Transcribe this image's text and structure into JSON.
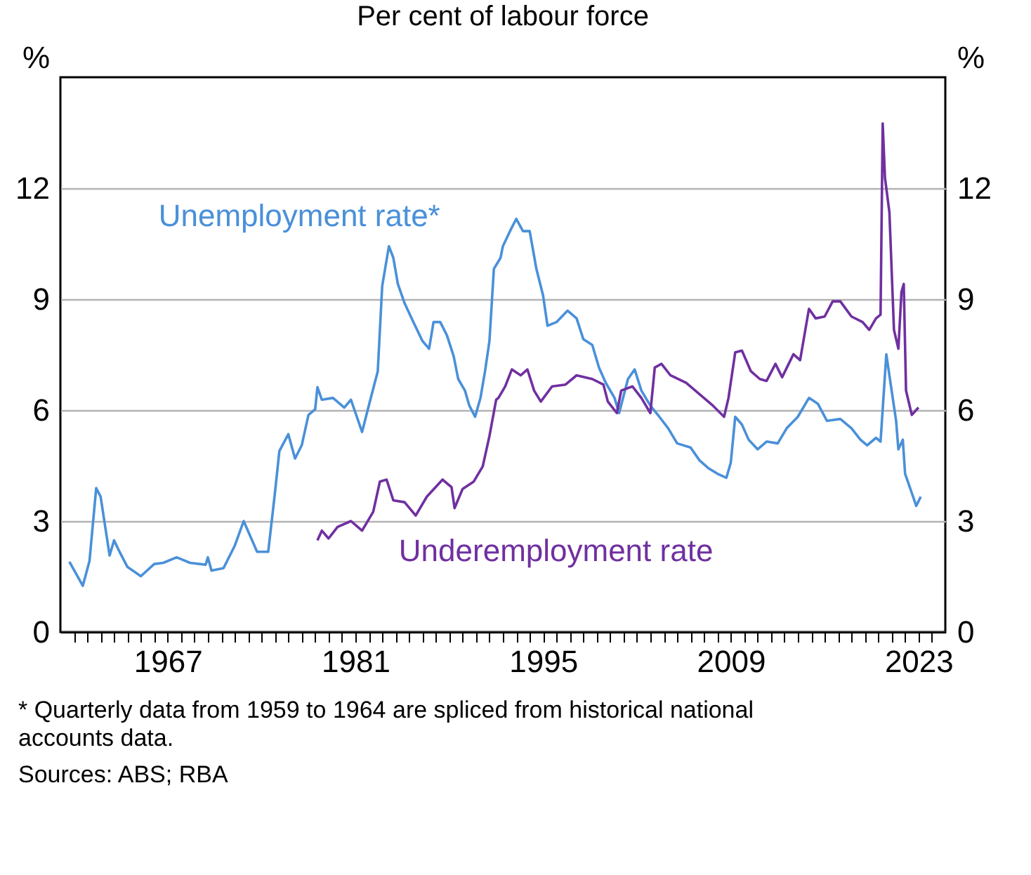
{
  "chart_data": {
    "type": "line",
    "title": "Per cent of labour force",
    "ylabel": "%",
    "y2label": "%",
    "xlim": [
      1959,
      2025
    ],
    "ylim": [
      0,
      15
    ],
    "y2lim": [
      0,
      15
    ],
    "yticks": [
      0,
      3,
      6,
      9,
      12
    ],
    "y2ticks": [
      0,
      3,
      6,
      9,
      12
    ],
    "xticks": [
      {
        "value": 1960,
        "label": null
      },
      {
        "value": 1961,
        "label": null
      },
      {
        "value": 1962,
        "label": null
      },
      {
        "value": 1963,
        "label": null
      },
      {
        "value": 1964,
        "label": null
      },
      {
        "value": 1965,
        "label": null
      },
      {
        "value": 1966,
        "label": null
      },
      {
        "value": 1967,
        "label": "1967"
      },
      {
        "value": 1968,
        "label": null
      },
      {
        "value": 1969,
        "label": null
      },
      {
        "value": 1970,
        "label": null
      },
      {
        "value": 1971,
        "label": null
      },
      {
        "value": 1972,
        "label": null
      },
      {
        "value": 1973,
        "label": null
      },
      {
        "value": 1974,
        "label": null
      },
      {
        "value": 1975,
        "label": null
      },
      {
        "value": 1976,
        "label": null
      },
      {
        "value": 1977,
        "label": null
      },
      {
        "value": 1978,
        "label": null
      },
      {
        "value": 1979,
        "label": null
      },
      {
        "value": 1980,
        "label": null
      },
      {
        "value": 1981,
        "label": "1981"
      },
      {
        "value": 1982,
        "label": null
      },
      {
        "value": 1983,
        "label": null
      },
      {
        "value": 1984,
        "label": null
      },
      {
        "value": 1985,
        "label": null
      },
      {
        "value": 1986,
        "label": null
      },
      {
        "value": 1987,
        "label": null
      },
      {
        "value": 1988,
        "label": null
      },
      {
        "value": 1989,
        "label": null
      },
      {
        "value": 1990,
        "label": null
      },
      {
        "value": 1991,
        "label": null
      },
      {
        "value": 1992,
        "label": null
      },
      {
        "value": 1993,
        "label": null
      },
      {
        "value": 1994,
        "label": null
      },
      {
        "value": 1995,
        "label": "1995"
      },
      {
        "value": 1996,
        "label": null
      },
      {
        "value": 1997,
        "label": null
      },
      {
        "value": 1998,
        "label": null
      },
      {
        "value": 1999,
        "label": null
      },
      {
        "value": 2000,
        "label": null
      },
      {
        "value": 2001,
        "label": null
      },
      {
        "value": 2002,
        "label": null
      },
      {
        "value": 2003,
        "label": null
      },
      {
        "value": 2004,
        "label": null
      },
      {
        "value": 2005,
        "label": null
      },
      {
        "value": 2006,
        "label": null
      },
      {
        "value": 2007,
        "label": null
      },
      {
        "value": 2008,
        "label": null
      },
      {
        "value": 2009,
        "label": "2009"
      },
      {
        "value": 2010,
        "label": null
      },
      {
        "value": 2011,
        "label": null
      },
      {
        "value": 2012,
        "label": null
      },
      {
        "value": 2013,
        "label": null
      },
      {
        "value": 2014,
        "label": null
      },
      {
        "value": 2015,
        "label": null
      },
      {
        "value": 2016,
        "label": null
      },
      {
        "value": 2017,
        "label": null
      },
      {
        "value": 2018,
        "label": null
      },
      {
        "value": 2019,
        "label": null
      },
      {
        "value": 2020,
        "label": null
      },
      {
        "value": 2021,
        "label": null
      },
      {
        "value": 2022,
        "label": null
      },
      {
        "value": 2023,
        "label": "2023"
      },
      {
        "value": 2024,
        "label": null
      }
    ],
    "grid": "y",
    "legend": false,
    "series": [
      {
        "name": "Unemployment rate*",
        "color": "#4a90d9",
        "x": [
          1959.67,
          1960.67,
          1961.17,
          1961.67,
          1962.0,
          1962.67,
          1963.0,
          1963.33,
          1964.0,
          1965.0,
          1966.0,
          1966.67,
          1967.67,
          1968.67,
          1969.83,
          1970.0,
          1970.27,
          1971.17,
          1972.0,
          1972.67,
          1973.67,
          1974.5,
          1975.0,
          1975.33,
          1976.0,
          1976.5,
          1977.0,
          1977.5,
          1978.0,
          1978.17,
          1978.5,
          1979.33,
          1980.17,
          1980.67,
          1981.5,
          1982.0,
          1982.67,
          1983.0,
          1983.5,
          1983.83,
          1984.17,
          1984.67,
          1985.33,
          1986.0,
          1986.5,
          1986.83,
          1987.33,
          1987.83,
          1988.33,
          1988.67,
          1989.17,
          1989.5,
          1989.93,
          1990.33,
          1990.67,
          1991.0,
          1991.33,
          1991.83,
          1992.0,
          1992.67,
          1993.0,
          1993.5,
          1994.0,
          1994.5,
          1995.0,
          1995.33,
          1996.0,
          1996.83,
          1997.5,
          1998.0,
          1998.67,
          1999.17,
          1999.67,
          2000.33,
          2000.67,
          2001.33,
          2001.83,
          2002.33,
          2003.0,
          2003.67,
          2004.33,
          2005.0,
          2006.0,
          2006.67,
          2007.33,
          2008.0,
          2008.67,
          2009.0,
          2009.33,
          2009.83,
          2010.33,
          2011.0,
          2011.67,
          2012.5,
          2013.17,
          2014.0,
          2014.83,
          2015.5,
          2016.17,
          2017.17,
          2018.0,
          2018.67,
          2019.17,
          2019.83,
          2020.17,
          2020.6,
          2020.83,
          2021.33,
          2021.5,
          2021.83,
          2022.0,
          2022.5,
          2022.83,
          2023.17
        ],
        "values": [
          1.9,
          1.25,
          1.92,
          3.89,
          3.66,
          2.07,
          2.48,
          2.23,
          1.76,
          1.51,
          1.84,
          1.87,
          2.02,
          1.87,
          1.82,
          2.02,
          1.66,
          1.73,
          2.33,
          3.0,
          2.17,
          2.17,
          3.76,
          4.89,
          5.35,
          4.69,
          5.05,
          5.87,
          6.02,
          6.62,
          6.28,
          6.33,
          6.07,
          6.28,
          5.41,
          6.12,
          7.05,
          9.35,
          10.43,
          10.12,
          9.41,
          8.89,
          8.38,
          7.87,
          7.66,
          8.38,
          8.38,
          8.02,
          7.46,
          6.84,
          6.53,
          6.12,
          5.82,
          6.33,
          7.05,
          7.87,
          9.82,
          10.12,
          10.43,
          10.94,
          11.17,
          10.84,
          10.84,
          9.82,
          9.1,
          8.28,
          8.38,
          8.69,
          8.48,
          7.92,
          7.76,
          7.15,
          6.74,
          6.33,
          5.92,
          6.84,
          7.1,
          6.53,
          6.12,
          5.82,
          5.51,
          5.1,
          4.99,
          4.64,
          4.43,
          4.28,
          4.17,
          4.58,
          5.82,
          5.61,
          5.2,
          4.94,
          5.15,
          5.1,
          5.51,
          5.82,
          6.33,
          6.17,
          5.71,
          5.76,
          5.51,
          5.2,
          5.05,
          5.25,
          5.15,
          7.51,
          6.94,
          5.71,
          4.94,
          5.2,
          4.28,
          3.76,
          3.41,
          3.66
        ]
      },
      {
        "name": "Underemployment rate",
        "color": "#7030a0",
        "x": [
          1978.17,
          1978.5,
          1979.0,
          1979.67,
          1980.67,
          1981.5,
          1982.33,
          1982.83,
          1983.33,
          1983.83,
          1984.67,
          1985.5,
          1986.33,
          1987.5,
          1988.17,
          1988.4,
          1989.0,
          1989.83,
          1990.5,
          1991.0,
          1991.5,
          1991.67,
          1992.17,
          1992.67,
          1993.33,
          1993.83,
          1994.33,
          1994.83,
          1995.67,
          1996.67,
          1997.5,
          1998.67,
          1999.5,
          1999.83,
          2000.5,
          2000.83,
          2001.67,
          2002.33,
          2003.0,
          2003.33,
          2003.83,
          2004.5,
          2005.67,
          2006.67,
          2007.67,
          2008.5,
          2008.83,
          2009.33,
          2009.83,
          2010.5,
          2011.17,
          2011.67,
          2012.33,
          2012.83,
          2013.67,
          2014.17,
          2014.83,
          2015.33,
          2016.0,
          2016.6,
          2017.17,
          2018.0,
          2018.83,
          2019.33,
          2019.83,
          2020.17,
          2020.33,
          2020.5,
          2020.83,
          2021.17,
          2021.5,
          2021.73,
          2021.9,
          2022.07,
          2022.5,
          2023.0
        ],
        "values": [
          2.48,
          2.74,
          2.53,
          2.84,
          3.0,
          2.74,
          3.25,
          4.07,
          4.12,
          3.56,
          3.51,
          3.15,
          3.66,
          4.12,
          3.92,
          3.35,
          3.87,
          4.07,
          4.48,
          5.3,
          6.28,
          6.33,
          6.64,
          7.1,
          6.94,
          7.1,
          6.53,
          6.23,
          6.64,
          6.69,
          6.94,
          6.84,
          6.69,
          6.23,
          5.92,
          6.53,
          6.64,
          6.33,
          5.92,
          7.15,
          7.25,
          6.94,
          6.74,
          6.43,
          6.12,
          5.82,
          6.33,
          7.56,
          7.61,
          7.05,
          6.84,
          6.79,
          7.25,
          6.89,
          7.51,
          7.35,
          8.74,
          8.48,
          8.53,
          8.94,
          8.94,
          8.53,
          8.38,
          8.17,
          8.48,
          8.58,
          13.75,
          12.28,
          11.35,
          8.17,
          7.66,
          9.2,
          9.41,
          6.53,
          5.87,
          6.07
        ]
      }
    ],
    "annotations": [
      "* Quarterly data from 1959 to 1964 are spliced from historical national accounts data.",
      "Sources: ABS; RBA"
    ]
  }
}
